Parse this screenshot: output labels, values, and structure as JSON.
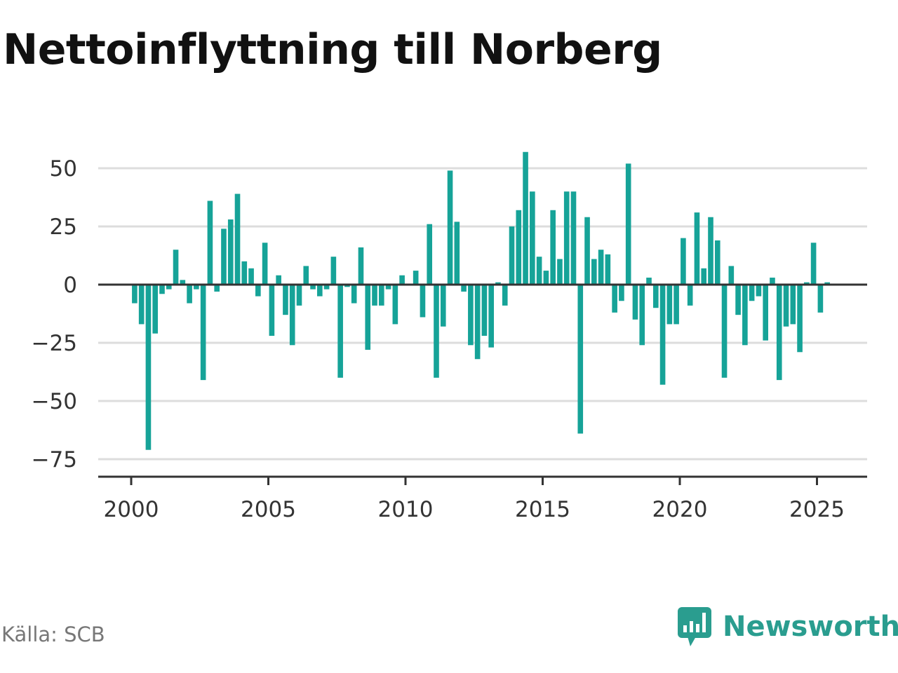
{
  "title": "Nettoinflyttning till Norberg",
  "source": "Källa: SCB",
  "brand": {
    "name": "Newsworthy",
    "icon": "chart-speech-bubble-icon"
  },
  "colors": {
    "bar": "#16a398",
    "grid": "#dddddd",
    "axis": "#333333",
    "brand": "#2a9d8f"
  },
  "chart_data": {
    "type": "bar",
    "title": "",
    "xlabel": "",
    "ylabel": "",
    "ylim": [
      -80,
      58
    ],
    "yticks": [
      50,
      25,
      0,
      -25,
      -50,
      -75
    ],
    "ytick_labels": [
      "50",
      "25",
      "0",
      "−25",
      "−50",
      "−75"
    ],
    "xlim": [
      2000,
      2026.5
    ],
    "xticks": [
      2000,
      2005,
      2010,
      2015,
      2020,
      2025
    ],
    "xtick_labels": [
      "2000",
      "2005",
      "2010",
      "2015",
      "2020",
      "2025"
    ],
    "grid": true,
    "legend": "none",
    "series": [
      {
        "frequency": "quarterly",
        "start": "2000 Q1",
        "values": [
          -8,
          -17,
          -71,
          -21,
          -4,
          -2,
          15,
          2,
          -8,
          -2,
          -41,
          36,
          -3,
          24,
          28,
          39,
          10,
          7,
          -5,
          18,
          -22,
          4,
          -13,
          -26,
          -9,
          8,
          -2,
          -5,
          -2,
          12,
          -40,
          -1,
          -8,
          16,
          -28,
          -9,
          -9,
          -2,
          -17,
          4,
          0,
          6,
          -14,
          26,
          -40,
          -18,
          49,
          27,
          -3,
          -26,
          -32,
          -22,
          -27,
          1,
          -9,
          25,
          32,
          57,
          40,
          12,
          6,
          32,
          11,
          40,
          40,
          -64,
          29,
          11,
          15,
          13,
          -12,
          -7,
          52,
          -15,
          -26,
          3,
          -10,
          -43,
          -17,
          -17,
          20,
          -9,
          31,
          7,
          29,
          19,
          -40,
          8,
          -13,
          -26,
          -7,
          -5,
          -24,
          3,
          -41,
          -18,
          -17,
          -29,
          1,
          18,
          -12,
          1
        ]
      }
    ]
  }
}
